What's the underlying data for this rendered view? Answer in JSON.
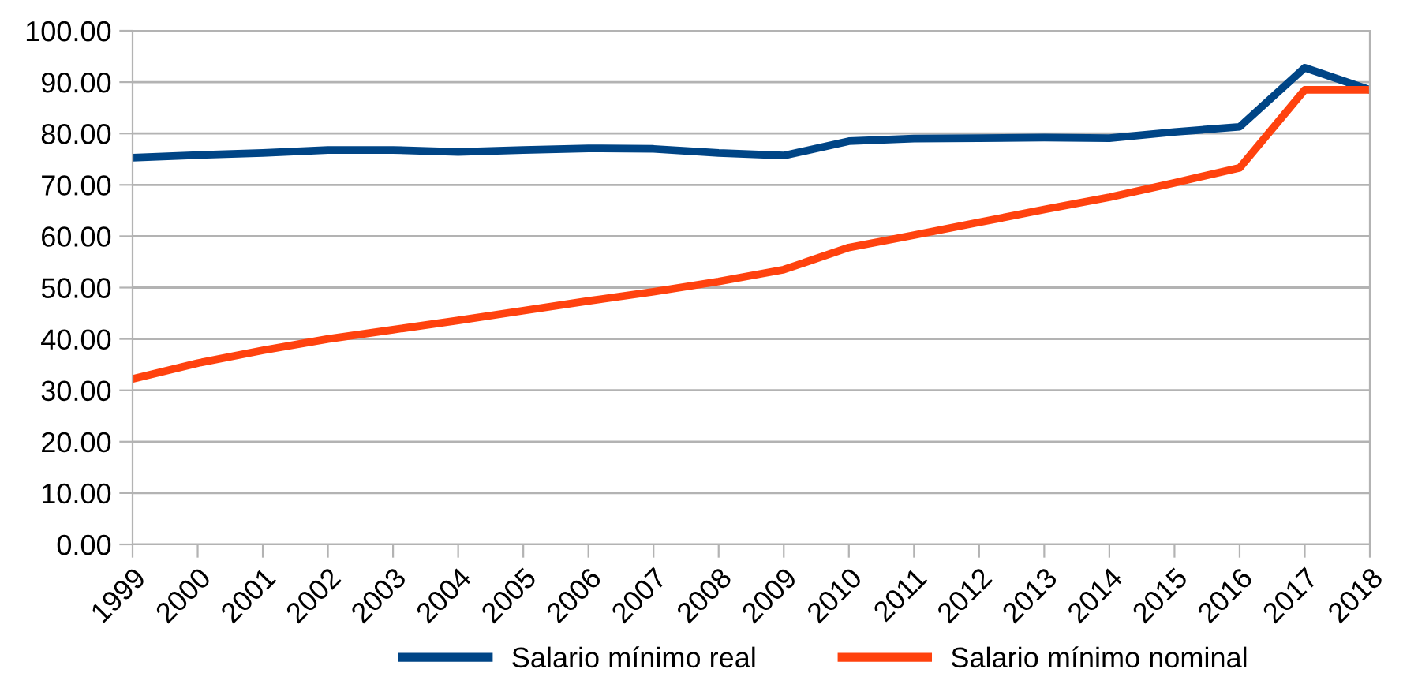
{
  "chart_data": {
    "type": "line",
    "categories": [
      "1999",
      "2000",
      "2001",
      "2002",
      "2003",
      "2004",
      "2005",
      "2006",
      "2007",
      "2008",
      "2009",
      "2010",
      "2011",
      "2012",
      "2013",
      "2014",
      "2015",
      "2016",
      "2017",
      "2018"
    ],
    "series": [
      {
        "name": "Salario mínimo real",
        "color": "#004586",
        "values": [
          75.3,
          75.8,
          76.2,
          76.8,
          76.8,
          76.4,
          76.8,
          77.1,
          77.0,
          76.2,
          75.7,
          78.5,
          79.0,
          79.1,
          79.2,
          79.1,
          80.3,
          81.3,
          92.8,
          88.5
        ]
      },
      {
        "name": "Salario mínimo nominal",
        "color": "#ff420e",
        "values": [
          32.2,
          35.3,
          37.8,
          40.0,
          41.8,
          43.6,
          45.5,
          47.4,
          49.2,
          51.2,
          53.5,
          57.8,
          60.2,
          62.7,
          65.2,
          67.6,
          70.4,
          73.3,
          88.5,
          88.5
        ]
      }
    ],
    "ylim": [
      0,
      100
    ],
    "yticks": [
      {
        "value": 0,
        "label": "0.00"
      },
      {
        "value": 10,
        "label": "10.00"
      },
      {
        "value": 20,
        "label": "20.00"
      },
      {
        "value": 30,
        "label": "30.00"
      },
      {
        "value": 40,
        "label": "40.00"
      },
      {
        "value": 50,
        "label": "50.00"
      },
      {
        "value": 60,
        "label": "60.00"
      },
      {
        "value": 70,
        "label": "70.00"
      },
      {
        "value": 80,
        "label": "80.00"
      },
      {
        "value": 90,
        "label": "90.00"
      },
      {
        "value": 100,
        "label": "100.00"
      }
    ],
    "grid": "y",
    "legend": "bottom",
    "marker": "none",
    "line_style": "solid"
  }
}
